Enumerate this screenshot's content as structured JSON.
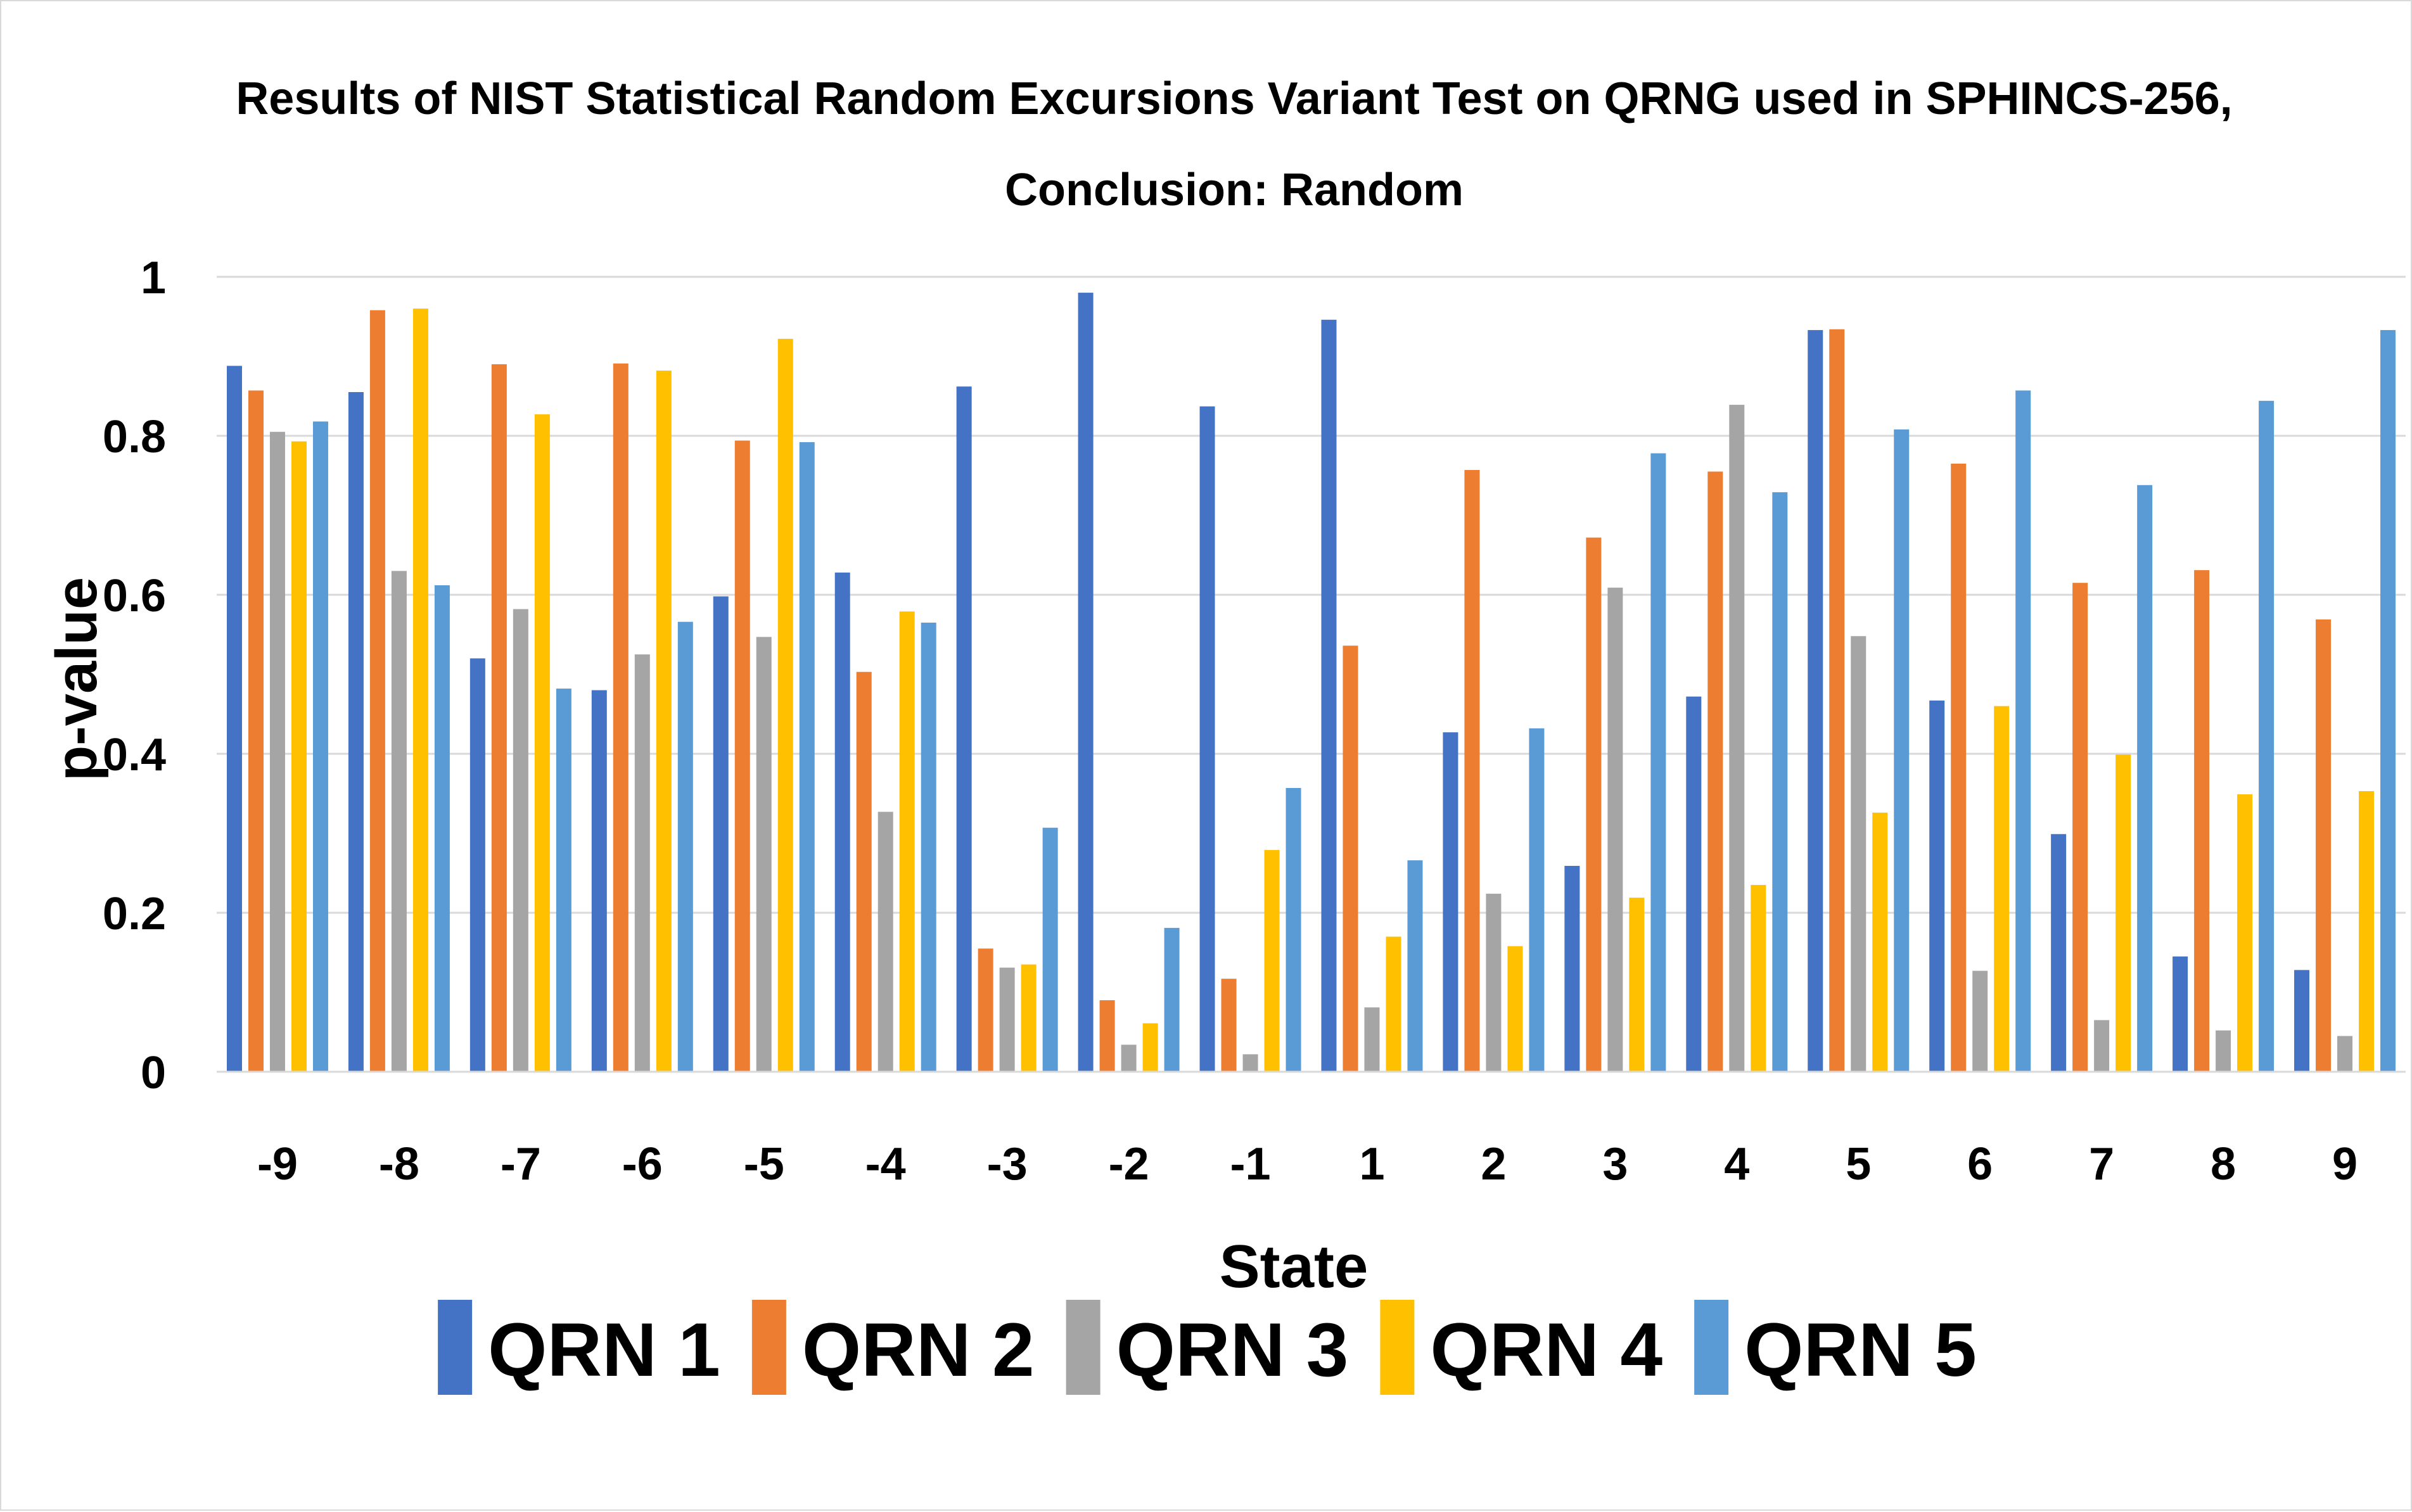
{
  "chart_data": {
    "type": "bar",
    "title": "Results of NIST Statistical Random Excursions Variant Test on QRNG used in SPHINCS-256,",
    "subtitle": "Conclusion: Random",
    "xlabel": "State",
    "ylabel": "p-value",
    "ylim": [
      0,
      1
    ],
    "yticks": [
      0,
      0.2,
      0.4,
      0.6,
      0.8,
      1
    ],
    "ytick_labels": [
      "0",
      "0.2",
      "0.4",
      "0.6",
      "0.8",
      "1"
    ],
    "grid": true,
    "legend_position": "bottom",
    "categories": [
      "-9",
      "-8",
      "-7",
      "-6",
      "-5",
      "-4",
      "-3",
      "-2",
      "-1",
      "1",
      "2",
      "3",
      "4",
      "5",
      "6",
      "7",
      "8",
      "9"
    ],
    "series": [
      {
        "name": "QRN 1",
        "color": "#4472C4",
        "values": [
          0.888,
          0.855,
          0.52,
          0.48,
          0.598,
          0.628,
          0.862,
          0.98,
          0.837,
          0.946,
          0.427,
          0.259,
          0.472,
          0.933,
          0.467,
          0.299,
          0.145,
          0.128
        ]
      },
      {
        "name": "QRN 2",
        "color": "#ED7D31",
        "values": [
          0.857,
          0.958,
          0.89,
          0.891,
          0.794,
          0.503,
          0.155,
          0.09,
          0.117,
          0.536,
          0.757,
          0.672,
          0.755,
          0.934,
          0.765,
          0.615,
          0.631,
          0.569
        ]
      },
      {
        "name": "QRN 3",
        "color": "#A5A5A5",
        "values": [
          0.805,
          0.63,
          0.582,
          0.525,
          0.547,
          0.327,
          0.131,
          0.034,
          0.022,
          0.081,
          0.224,
          0.609,
          0.839,
          0.548,
          0.127,
          0.065,
          0.052,
          0.045
        ]
      },
      {
        "name": "QRN 4",
        "color": "#FFC000",
        "values": [
          0.793,
          0.96,
          0.827,
          0.882,
          0.922,
          0.579,
          0.135,
          0.061,
          0.279,
          0.17,
          0.158,
          0.219,
          0.235,
          0.326,
          0.46,
          0.399,
          0.349,
          0.353
        ]
      },
      {
        "name": "QRN 5",
        "color": "#5B9BD5",
        "values": [
          0.818,
          0.612,
          0.482,
          0.566,
          0.792,
          0.565,
          0.307,
          0.181,
          0.357,
          0.266,
          0.432,
          0.778,
          0.729,
          0.808,
          0.857,
          0.738,
          0.844,
          0.933
        ]
      }
    ]
  }
}
